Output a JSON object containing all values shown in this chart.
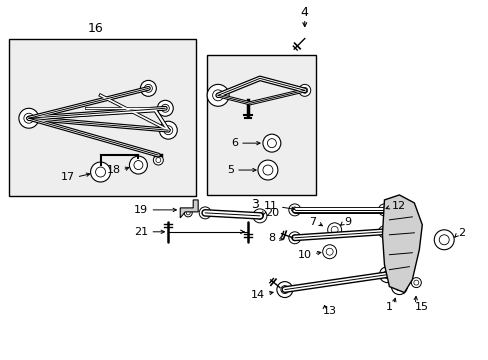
{
  "bg_color": "#ffffff",
  "fig_width": 4.89,
  "fig_height": 3.6,
  "dpi": 100,
  "line_color": "#000000",
  "gray_fill": "#d8d8d8",
  "light_gray": "#e8e8e8"
}
